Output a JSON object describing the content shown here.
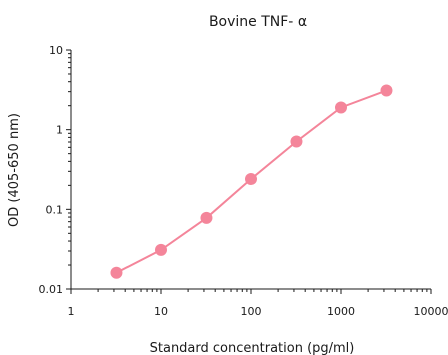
{
  "chart_data": {
    "type": "line",
    "title": "Bovine TNF- α",
    "xlabel": "Standard concentration (pg/ml)",
    "ylabel": "OD (405-650 nm)",
    "x_scale": "log",
    "y_scale": "log",
    "xlim": [
      1,
      10000
    ],
    "ylim": [
      0.01,
      10
    ],
    "x_ticks": [
      "1",
      "10",
      "100",
      "1000",
      "10000"
    ],
    "y_ticks": [
      "0.01",
      "0.1",
      "1",
      "10"
    ],
    "grid": false,
    "legend": "none",
    "series": [
      {
        "color": "#f4859a",
        "x": [
          3.2,
          10,
          32,
          100,
          320,
          1000,
          3200
        ],
        "y": [
          0.016,
          0.031,
          0.078,
          0.24,
          0.71,
          1.9,
          3.1
        ]
      }
    ]
  }
}
